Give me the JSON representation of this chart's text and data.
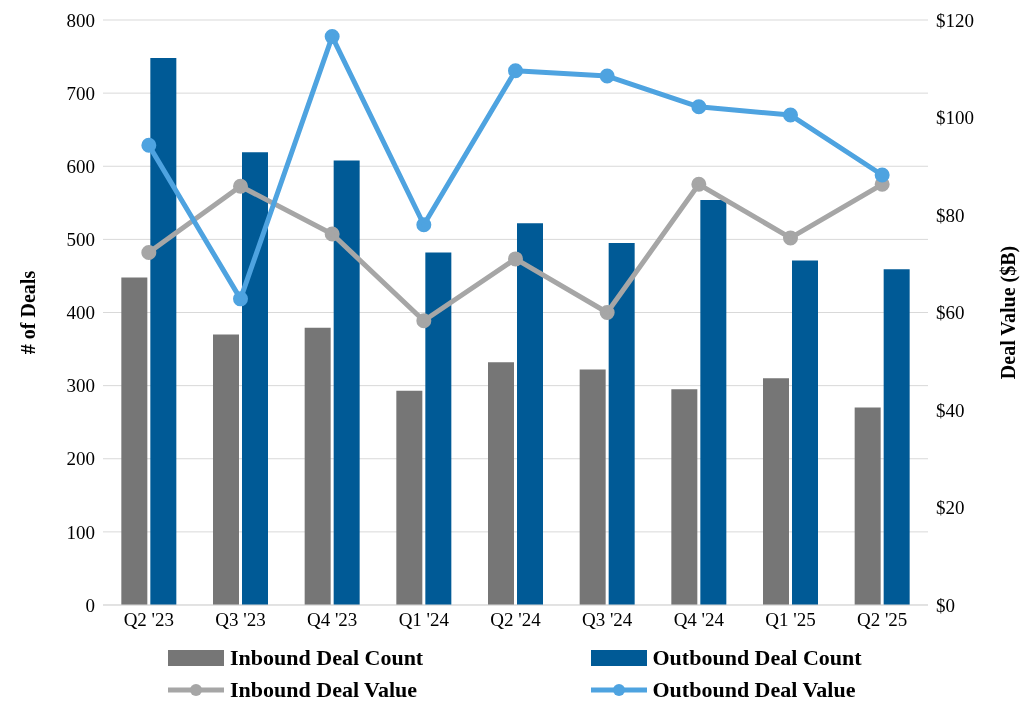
{
  "chart_data": {
    "type": "bar",
    "ylabel": "# of Deals",
    "y2label": "Deal Value ($B)",
    "categories": [
      "Q2 '23",
      "Q3 '23",
      "Q4 '23",
      "Q1 '24",
      "Q2 '24",
      "Q3 '24",
      "Q4 '24",
      "Q1 '25",
      "Q2 '25"
    ],
    "series": [
      {
        "name": "Inbound Deal Count",
        "color": "#767676",
        "values": [
          448,
          370,
          379,
          293,
          332,
          322,
          295,
          310,
          270
        ]
      },
      {
        "name": "Outbound Deal Count",
        "color": "#005a96",
        "values": [
          748,
          619,
          608,
          482,
          522,
          495,
          554,
          471,
          459
        ]
      },
      {
        "name": "Inbound Deal Value",
        "type": "line",
        "axis": "y2",
        "color": "#a6a6a6",
        "values": [
          72.3,
          85.9,
          76.1,
          58.3,
          71.0,
          60.0,
          86.3,
          75.3,
          86.3
        ]
      },
      {
        "name": "Outbound Deal Value",
        "type": "line",
        "axis": "y2",
        "color": "#4ea3e0",
        "values": [
          94.3,
          62.8,
          116.6,
          78.0,
          109.6,
          108.5,
          102.2,
          100.5,
          88.2
        ]
      }
    ],
    "ylim": [
      0,
      800
    ],
    "yticks": [
      0,
      100,
      200,
      300,
      400,
      500,
      600,
      700,
      800
    ],
    "y2lim": [
      0,
      120
    ],
    "y2ticks": [
      {
        "value": 0,
        "label": "$0"
      },
      {
        "value": 20,
        "label": "$20"
      },
      {
        "value": 40,
        "label": "$40"
      },
      {
        "value": 60,
        "label": "$60"
      },
      {
        "value": 80,
        "label": "$80"
      },
      {
        "value": 100,
        "label": "$100"
      },
      {
        "value": 120,
        "label": "$120"
      }
    ],
    "grid": "y",
    "legend": "bottom",
    "marker": "circle",
    "line_style": "solid"
  }
}
